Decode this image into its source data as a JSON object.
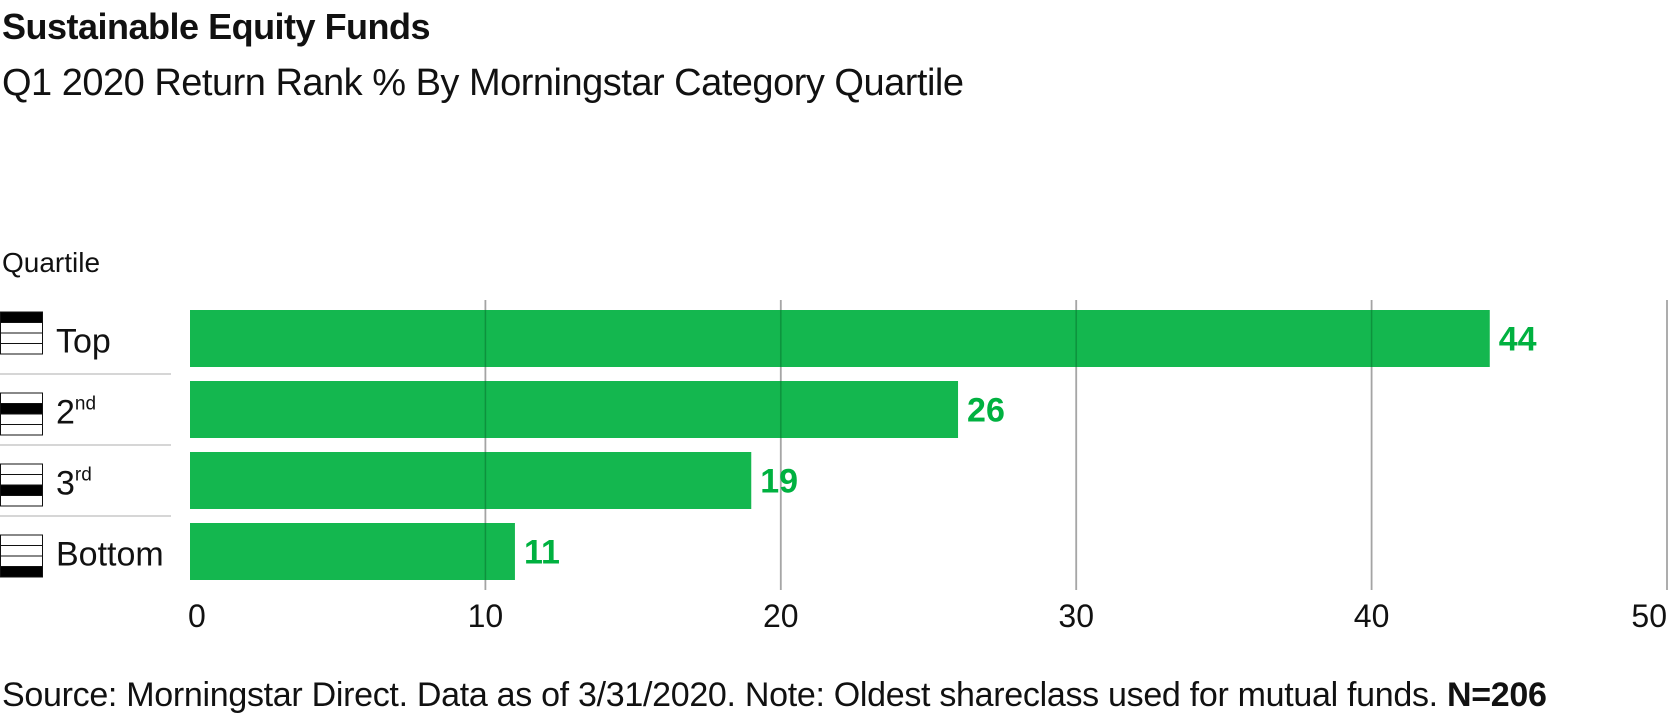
{
  "chart_data": {
    "type": "bar",
    "orientation": "horizontal",
    "title": "Sustainable Equity Funds",
    "subtitle": "Q1 2020 Return Rank % By Morningstar Category Quartile",
    "ylabel": "Quartile",
    "xlabel": "",
    "categories": [
      {
        "label": "Top",
        "sup": ""
      },
      {
        "label": "2",
        "sup": "nd"
      },
      {
        "label": "3",
        "sup": "rd"
      },
      {
        "label": "Bottom",
        "sup": ""
      }
    ],
    "values": [
      44,
      26,
      19,
      11
    ],
    "data_labels": [
      "44",
      "26",
      "19",
      "11"
    ],
    "xlim": [
      0,
      50
    ],
    "xticks": [
      0,
      10,
      20,
      30,
      40,
      50
    ],
    "xtick_labels": [
      "0",
      "10",
      "20",
      "30",
      "40",
      "50"
    ],
    "grid": true,
    "legend": "none",
    "bar_color": "#00b140",
    "label_color": "#00b140",
    "grid_color": "#c8c8c8",
    "quartile_icons": [
      "quartile-top-icon",
      "quartile-2nd-icon",
      "quartile-3rd-icon",
      "quartile-bottom-icon"
    ]
  },
  "footnote": {
    "text": "Source: Morningstar Direct. Data as of 3/31/2020. Note: Oldest shareclass used for mutual funds.",
    "bold": "N=206"
  }
}
